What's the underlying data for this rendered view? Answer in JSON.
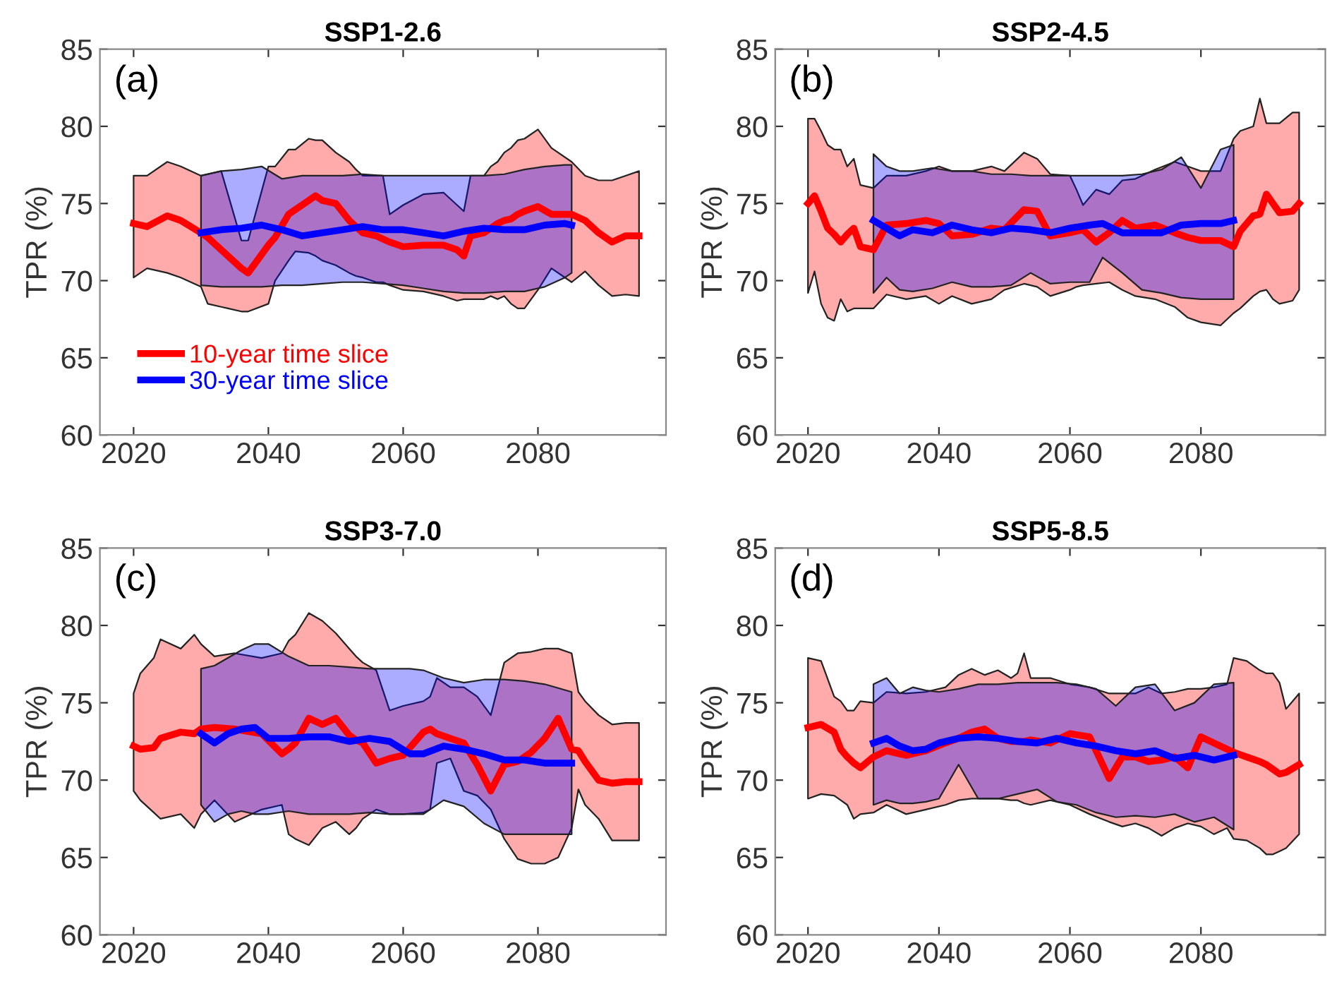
{
  "chart_data": [
    {
      "type": "line",
      "title": "SSP1-2.6",
      "ylabel": "TPR (%)",
      "annotations": [
        "(a)"
      ],
      "xlim": [
        2015,
        2099
      ],
      "ylim": [
        60,
        85
      ],
      "xticks": [
        2020,
        2040,
        2060,
        2080
      ],
      "yticks": [
        60,
        65,
        70,
        75,
        80,
        85
      ],
      "grid": false,
      "legend": "bottom left",
      "series": [
        {
          "name": "10-year time slice",
          "color": "#ff0000",
          "x": [
            2020,
            2022,
            2025,
            2027,
            2030,
            2031,
            2033,
            2034,
            2036,
            2037,
            2040,
            2041,
            2043,
            2044,
            2046,
            2047,
            2048,
            2050,
            2052,
            2053,
            2054,
            2056,
            2057,
            2058,
            2060,
            2063,
            2066,
            2068,
            2069,
            2070,
            2072,
            2073,
            2074,
            2075,
            2076,
            2077,
            2078,
            2080,
            2082,
            2085,
            2087,
            2089,
            2091,
            2093,
            2095
          ],
          "values": [
            73.7,
            73.5,
            74.2,
            73.9,
            73.1,
            72.8,
            72.0,
            71.6,
            70.8,
            70.5,
            72.3,
            72.8,
            74.3,
            74.6,
            75.2,
            75.5,
            75.2,
            75.0,
            73.9,
            73.5,
            73.1,
            72.9,
            72.7,
            72.5,
            72.2,
            72.3,
            72.3,
            72.0,
            71.6,
            72.9,
            73.1,
            73.4,
            73.7,
            73.9,
            74.0,
            74.3,
            74.5,
            74.8,
            74.3,
            74.3,
            73.9,
            73.1,
            72.5,
            72.9,
            72.9
          ],
          "upper": [
            76.8,
            76.8,
            77.7,
            77.4,
            76.8,
            76.9,
            77.1,
            75.6,
            72.6,
            72.6,
            77.4,
            77.4,
            78.5,
            78.5,
            79.2,
            79.1,
            79.1,
            78.3,
            77.7,
            77.2,
            76.8,
            76.8,
            76.8,
            74.3,
            74.9,
            75.6,
            75.7,
            74.9,
            74.5,
            76.8,
            76.8,
            77.4,
            77.7,
            78.3,
            78.6,
            79.1,
            79.2,
            79.8,
            78.6,
            77.7,
            76.8,
            76.5,
            76.5,
            76.8,
            77.1
          ],
          "lower": [
            70.2,
            70.8,
            70.5,
            70.2,
            69.6,
            68.5,
            68.3,
            68.2,
            68.0,
            68.0,
            68.5,
            70.0,
            71.3,
            71.9,
            71.8,
            71.6,
            71.3,
            71.0,
            70.5,
            70.3,
            70.2,
            69.9,
            69.9,
            69.7,
            69.4,
            69.3,
            69.0,
            68.7,
            68.8,
            68.8,
            68.8,
            69.0,
            68.8,
            69.0,
            68.5,
            68.2,
            68.2,
            69.4,
            70.8,
            69.9,
            70.6,
            69.7,
            69.0,
            69.1,
            69.0
          ]
        },
        {
          "name": "30-year time slice",
          "color": "#0000ff",
          "x": [
            2030,
            2033,
            2036,
            2039,
            2042,
            2045,
            2048,
            2051,
            2054,
            2057,
            2060,
            2063,
            2066,
            2069,
            2072,
            2075,
            2078,
            2081,
            2084,
            2085
          ],
          "values": [
            73.1,
            73.3,
            73.4,
            73.6,
            73.3,
            72.9,
            73.1,
            73.3,
            73.5,
            73.3,
            73.3,
            73.1,
            72.9,
            73.2,
            73.4,
            73.3,
            73.3,
            73.6,
            73.7,
            73.6
          ],
          "upper": [
            76.8,
            77.1,
            77.2,
            77.4,
            76.6,
            76.8,
            76.8,
            76.8,
            76.9,
            76.8,
            76.8,
            76.8,
            76.8,
            76.8,
            76.8,
            76.9,
            77.2,
            77.4,
            77.5,
            77.5
          ],
          "lower": [
            69.7,
            69.6,
            69.6,
            69.6,
            69.7,
            69.7,
            69.8,
            69.9,
            69.9,
            69.8,
            69.7,
            69.5,
            69.3,
            69.2,
            69.2,
            69.3,
            69.3,
            69.6,
            70.2,
            70.5
          ]
        }
      ]
    },
    {
      "type": "line",
      "title": "SSP2-4.5",
      "ylabel": "TPR (%)",
      "annotations": [
        "(b)"
      ],
      "xlim": [
        2015,
        2099
      ],
      "ylim": [
        60,
        85
      ],
      "xticks": [
        2020,
        2040,
        2060,
        2080
      ],
      "yticks": [
        60,
        65,
        70,
        75,
        80,
        85
      ],
      "grid": false,
      "series": [
        {
          "color": "#ff0000",
          "x": [
            2020,
            2021,
            2022,
            2023,
            2024,
            2025,
            2026,
            2027,
            2028,
            2030,
            2032,
            2035,
            2038,
            2040,
            2042,
            2045,
            2048,
            2050,
            2053,
            2055,
            2057,
            2060,
            2061,
            2062,
            2064,
            2066,
            2068,
            2070,
            2073,
            2076,
            2078,
            2080,
            2083,
            2085,
            2086,
            2088,
            2089,
            2090,
            2091,
            2092,
            2094,
            2095
          ],
          "values": [
            75.0,
            75.5,
            74.5,
            73.4,
            73.0,
            72.5,
            73.0,
            73.4,
            72.2,
            72.0,
            73.6,
            73.7,
            73.9,
            73.7,
            72.9,
            73.0,
            73.4,
            73.3,
            74.6,
            74.5,
            72.9,
            73.1,
            73.2,
            73.3,
            72.5,
            73.1,
            73.9,
            73.4,
            73.6,
            73.1,
            72.8,
            72.6,
            72.6,
            72.2,
            73.2,
            74.2,
            74.3,
            75.6,
            75.0,
            74.4,
            74.5,
            75.0
          ],
          "upper": [
            80.5,
            80.5,
            79.7,
            78.8,
            78.5,
            78.5,
            77.4,
            77.9,
            76.2,
            76.0,
            76.8,
            76.8,
            77.1,
            77.4,
            77.1,
            77.1,
            77.4,
            77.1,
            78.3,
            77.9,
            76.9,
            76.8,
            75.9,
            74.9,
            75.9,
            75.6,
            76.5,
            76.6,
            77.2,
            77.7,
            77.4,
            77.1,
            77.1,
            79.2,
            79.7,
            80.0,
            81.8,
            80.2,
            80.2,
            80.2,
            80.9,
            80.9
          ],
          "lower": [
            69.2,
            70.6,
            68.5,
            67.6,
            67.4,
            68.8,
            68.0,
            68.2,
            68.2,
            68.2,
            69.1,
            68.8,
            69.0,
            68.5,
            69.0,
            68.5,
            68.8,
            69.4,
            69.8,
            69.6,
            69.0,
            69.4,
            69.6,
            69.7,
            69.8,
            69.9,
            69.4,
            69.0,
            68.8,
            68.3,
            67.6,
            67.3,
            67.1,
            67.9,
            68.2,
            69.0,
            69.3,
            69.4,
            68.8,
            68.5,
            68.7,
            69.4
          ]
        },
        {
          "color": "#0000ff",
          "x": [
            2030,
            2032,
            2034,
            2036,
            2039,
            2042,
            2045,
            2048,
            2051,
            2054,
            2057,
            2060,
            2063,
            2065,
            2068,
            2071,
            2074,
            2077,
            2080,
            2083,
            2085
          ],
          "values": [
            73.9,
            73.4,
            72.9,
            73.3,
            73.1,
            73.6,
            73.3,
            73.1,
            73.4,
            73.3,
            73.1,
            73.4,
            73.6,
            73.7,
            73.1,
            73.1,
            73.1,
            73.6,
            73.7,
            73.7,
            73.9
          ],
          "upper": [
            78.2,
            77.4,
            77.1,
            77.1,
            77.3,
            77.1,
            77.1,
            76.9,
            76.9,
            76.8,
            76.8,
            76.8,
            76.8,
            76.8,
            76.8,
            76.9,
            77.2,
            78.0,
            76.0,
            78.5,
            78.8
          ],
          "lower": [
            69.2,
            70.2,
            69.4,
            69.3,
            69.5,
            69.9,
            69.6,
            69.6,
            69.7,
            70.5,
            69.8,
            69.9,
            69.9,
            71.5,
            70.5,
            69.4,
            69.2,
            68.9,
            68.8,
            68.8,
            68.8
          ]
        }
      ]
    },
    {
      "type": "line",
      "title": "SSP3-7.0",
      "ylabel": "TPR (%)",
      "annotations": [
        "(c)"
      ],
      "xlim": [
        2015,
        2099
      ],
      "ylim": [
        60,
        85
      ],
      "xticks": [
        2020,
        2040,
        2060,
        2080
      ],
      "yticks": [
        60,
        65,
        70,
        75,
        80,
        85
      ],
      "grid": false,
      "series": [
        {
          "color": "#ff0000",
          "x": [
            2020,
            2021,
            2023,
            2024,
            2027,
            2029,
            2030,
            2032,
            2035,
            2039,
            2042,
            2043,
            2044,
            2046,
            2048,
            2050,
            2052,
            2053,
            2054,
            2056,
            2058,
            2060,
            2063,
            2064,
            2065,
            2067,
            2069,
            2071,
            2073,
            2075,
            2077,
            2079,
            2081,
            2083,
            2085,
            2086,
            2087,
            2089,
            2091,
            2093,
            2095
          ],
          "values": [
            72.2,
            72.0,
            72.1,
            72.7,
            73.1,
            73.0,
            73.3,
            73.4,
            73.3,
            73.0,
            71.7,
            72.0,
            72.4,
            74.0,
            73.6,
            74.0,
            72.9,
            72.6,
            72.4,
            71.1,
            71.4,
            71.6,
            73.1,
            73.3,
            73.0,
            72.7,
            72.4,
            71.0,
            69.3,
            71.0,
            71.2,
            71.8,
            72.7,
            74.0,
            72.0,
            71.9,
            71.2,
            70.0,
            69.8,
            69.9,
            69.9
          ],
          "upper": [
            75.6,
            76.9,
            77.9,
            79.1,
            78.5,
            79.4,
            78.8,
            78.0,
            78.2,
            77.9,
            78.2,
            79.0,
            79.4,
            80.8,
            80.3,
            79.5,
            78.5,
            78.0,
            77.6,
            77.1,
            74.5,
            74.8,
            75.1,
            75.4,
            76.6,
            76.0,
            76.0,
            75.4,
            74.2,
            77.6,
            78.2,
            78.3,
            78.5,
            78.5,
            78.2,
            75.7,
            75.1,
            74.2,
            73.6,
            73.7,
            73.7
          ],
          "lower": [
            69.3,
            68.7,
            67.9,
            67.5,
            67.8,
            66.9,
            67.8,
            68.7,
            67.3,
            68.1,
            68.4,
            66.5,
            66.2,
            65.8,
            66.9,
            67.3,
            66.5,
            66.9,
            67.5,
            68.1,
            67.8,
            67.8,
            67.9,
            68.1,
            71.1,
            71.4,
            69.3,
            69.0,
            68.1,
            66.2,
            64.9,
            64.6,
            64.6,
            65.0,
            66.9,
            69.4,
            68.4,
            67.5,
            66.1,
            66.1,
            66.1
          ]
        },
        {
          "color": "#0000ff",
          "x": [
            2030,
            2032,
            2034,
            2036,
            2038,
            2040,
            2043,
            2046,
            2049,
            2052,
            2055,
            2058,
            2061,
            2063,
            2066,
            2069,
            2072,
            2075,
            2078,
            2081,
            2085
          ],
          "values": [
            73.0,
            72.4,
            73.0,
            73.3,
            73.4,
            72.7,
            72.7,
            72.8,
            72.8,
            72.5,
            72.7,
            72.5,
            71.7,
            71.7,
            72.2,
            72.0,
            71.7,
            71.3,
            71.3,
            71.1,
            71.1
          ],
          "upper": [
            77.2,
            77.4,
            77.9,
            78.4,
            78.8,
            78.8,
            78.0,
            77.4,
            77.4,
            77.3,
            77.2,
            77.2,
            77.2,
            77.1,
            76.6,
            76.3,
            76.5,
            76.5,
            76.4,
            76.2,
            75.7
          ],
          "lower": [
            68.4,
            67.3,
            67.8,
            68.0,
            67.8,
            67.8,
            68.0,
            67.8,
            67.8,
            67.8,
            67.9,
            67.8,
            67.8,
            67.8,
            68.7,
            68.3,
            67.2,
            66.5,
            66.5,
            66.5,
            66.5
          ]
        }
      ]
    },
    {
      "type": "line",
      "title": "SSP5-8.5",
      "ylabel": "TPR (%)",
      "annotations": [
        "(d)"
      ],
      "xlim": [
        2015,
        2099
      ],
      "ylim": [
        60,
        85
      ],
      "xticks": [
        2020,
        2040,
        2060,
        2080
      ],
      "yticks": [
        60,
        65,
        70,
        75,
        80,
        85
      ],
      "grid": false,
      "series": [
        {
          "color": "#ff0000",
          "x": [
            2020,
            2022,
            2024,
            2025,
            2026,
            2027,
            2028,
            2030,
            2032,
            2035,
            2038,
            2041,
            2043,
            2045,
            2047,
            2049,
            2051,
            2052,
            2053,
            2054,
            2057,
            2060,
            2063,
            2066,
            2068,
            2070,
            2072,
            2074,
            2076,
            2078,
            2080,
            2082,
            2084,
            2085,
            2087,
            2089,
            2090,
            2091,
            2092,
            2093,
            2095
          ],
          "values": [
            73.4,
            73.6,
            73.1,
            72.0,
            71.5,
            71.1,
            70.8,
            71.5,
            71.9,
            71.6,
            71.9,
            72.4,
            72.7,
            73.1,
            73.3,
            72.7,
            72.5,
            72.5,
            72.5,
            72.6,
            72.4,
            73.0,
            72.8,
            70.1,
            71.5,
            71.5,
            71.2,
            71.3,
            71.5,
            70.8,
            72.8,
            72.4,
            72.0,
            71.8,
            71.5,
            71.2,
            71.0,
            70.7,
            70.4,
            70.5,
            71.0
          ],
          "upper": [
            77.9,
            77.7,
            75.4,
            75.1,
            74.5,
            74.5,
            75.1,
            75.0,
            75.7,
            75.6,
            75.7,
            76.0,
            76.8,
            77.2,
            76.8,
            77.1,
            76.6,
            76.9,
            78.2,
            76.6,
            76.6,
            76.2,
            76.0,
            75.6,
            75.6,
            75.6,
            76.0,
            75.6,
            75.7,
            75.9,
            75.9,
            76.0,
            76.2,
            77.9,
            77.7,
            77.1,
            76.9,
            76.9,
            76.3,
            74.6,
            75.6
          ],
          "lower": [
            68.8,
            69.1,
            69.0,
            68.7,
            68.4,
            67.5,
            67.8,
            67.9,
            68.4,
            67.8,
            68.1,
            68.4,
            68.7,
            68.8,
            68.8,
            68.8,
            68.7,
            68.7,
            68.5,
            68.4,
            68.7,
            68.4,
            67.8,
            67.3,
            67.0,
            67.2,
            66.9,
            66.4,
            66.9,
            67.2,
            67.0,
            66.5,
            66.9,
            66.2,
            66.1,
            65.6,
            65.2,
            65.2,
            65.4,
            65.6,
            66.5
          ]
        },
        {
          "color": "#0000ff",
          "x": [
            2030,
            2032,
            2034,
            2036,
            2038,
            2040,
            2043,
            2046,
            2049,
            2052,
            2055,
            2058,
            2061,
            2064,
            2067,
            2070,
            2073,
            2076,
            2079,
            2082,
            2085
          ],
          "values": [
            72.4,
            72.7,
            72.2,
            71.9,
            72.0,
            72.4,
            72.7,
            72.8,
            72.7,
            72.5,
            72.4,
            72.7,
            72.4,
            72.2,
            71.9,
            71.7,
            71.9,
            71.4,
            71.6,
            71.3,
            71.6
          ],
          "upper": [
            76.2,
            76.6,
            75.6,
            76.0,
            75.8,
            75.7,
            75.9,
            76.2,
            76.2,
            76.3,
            76.3,
            76.3,
            76.2,
            75.9,
            74.8,
            76.0,
            76.2,
            74.5,
            75.0,
            76.2,
            76.3
          ],
          "lower": [
            68.4,
            68.7,
            68.5,
            68.5,
            68.6,
            68.8,
            71.0,
            68.8,
            68.8,
            69.1,
            69.4,
            68.6,
            68.4,
            67.9,
            67.6,
            67.7,
            67.6,
            67.8,
            67.3,
            67.6,
            66.8
          ]
        }
      ]
    }
  ]
}
